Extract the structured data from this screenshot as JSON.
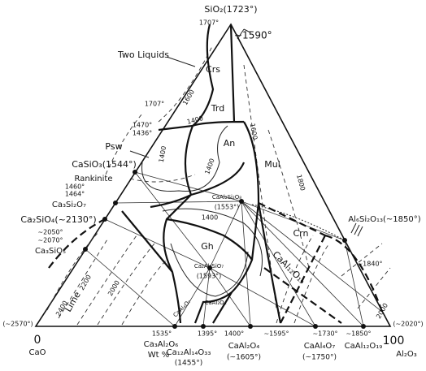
{
  "title": "SiO₂(1723°)",
  "labels": [
    "1707°",
    "~1590°",
    "Two Liquids",
    "Crs",
    "1600",
    "1707°",
    "Trd",
    "1400",
    "1470°",
    "1436°",
    "Psw",
    "An",
    "1600",
    "1400",
    "1400",
    "Mul",
    "1800",
    "CaSiO₃(1544°)",
    "Rankinite",
    "1460°",
    "1464°",
    "Ca₃Si₂O₇",
    "CaAl₂Si₂O₈",
    "(1553°)",
    "Ca₂SiO₄(~2130°)",
    "1400",
    "Crn",
    "Al₆Si₂O₁₃(~1850°)",
    "~2050°",
    "~2070°",
    "Ca₃SiO₅",
    "Gh",
    "Ca₂Al₂SiO₇",
    "(1593°)",
    "CaAl₁₂O₁₉",
    "~1840°",
    "2200",
    "Lime",
    "2400",
    "2000",
    "2000",
    "(~2570°)",
    "(~2020°)",
    "CaAl₄O₇",
    "CaAl₂O₄",
    "0",
    "CaO",
    "1535°",
    "Ca₃Al₂O₆",
    "Wt %",
    "Ca₁₂Al₁₄O₃₃",
    "(1455°)",
    "1395°",
    "1400°",
    "~1595°",
    "CaAl₂O₄",
    "(~1605°)",
    "~1730°",
    "CaAl₄O₇",
    "(~1750°)",
    "~1850°",
    "CaAl₁₂O₁₉",
    "100",
    "Al₂O₃"
  ]
}
